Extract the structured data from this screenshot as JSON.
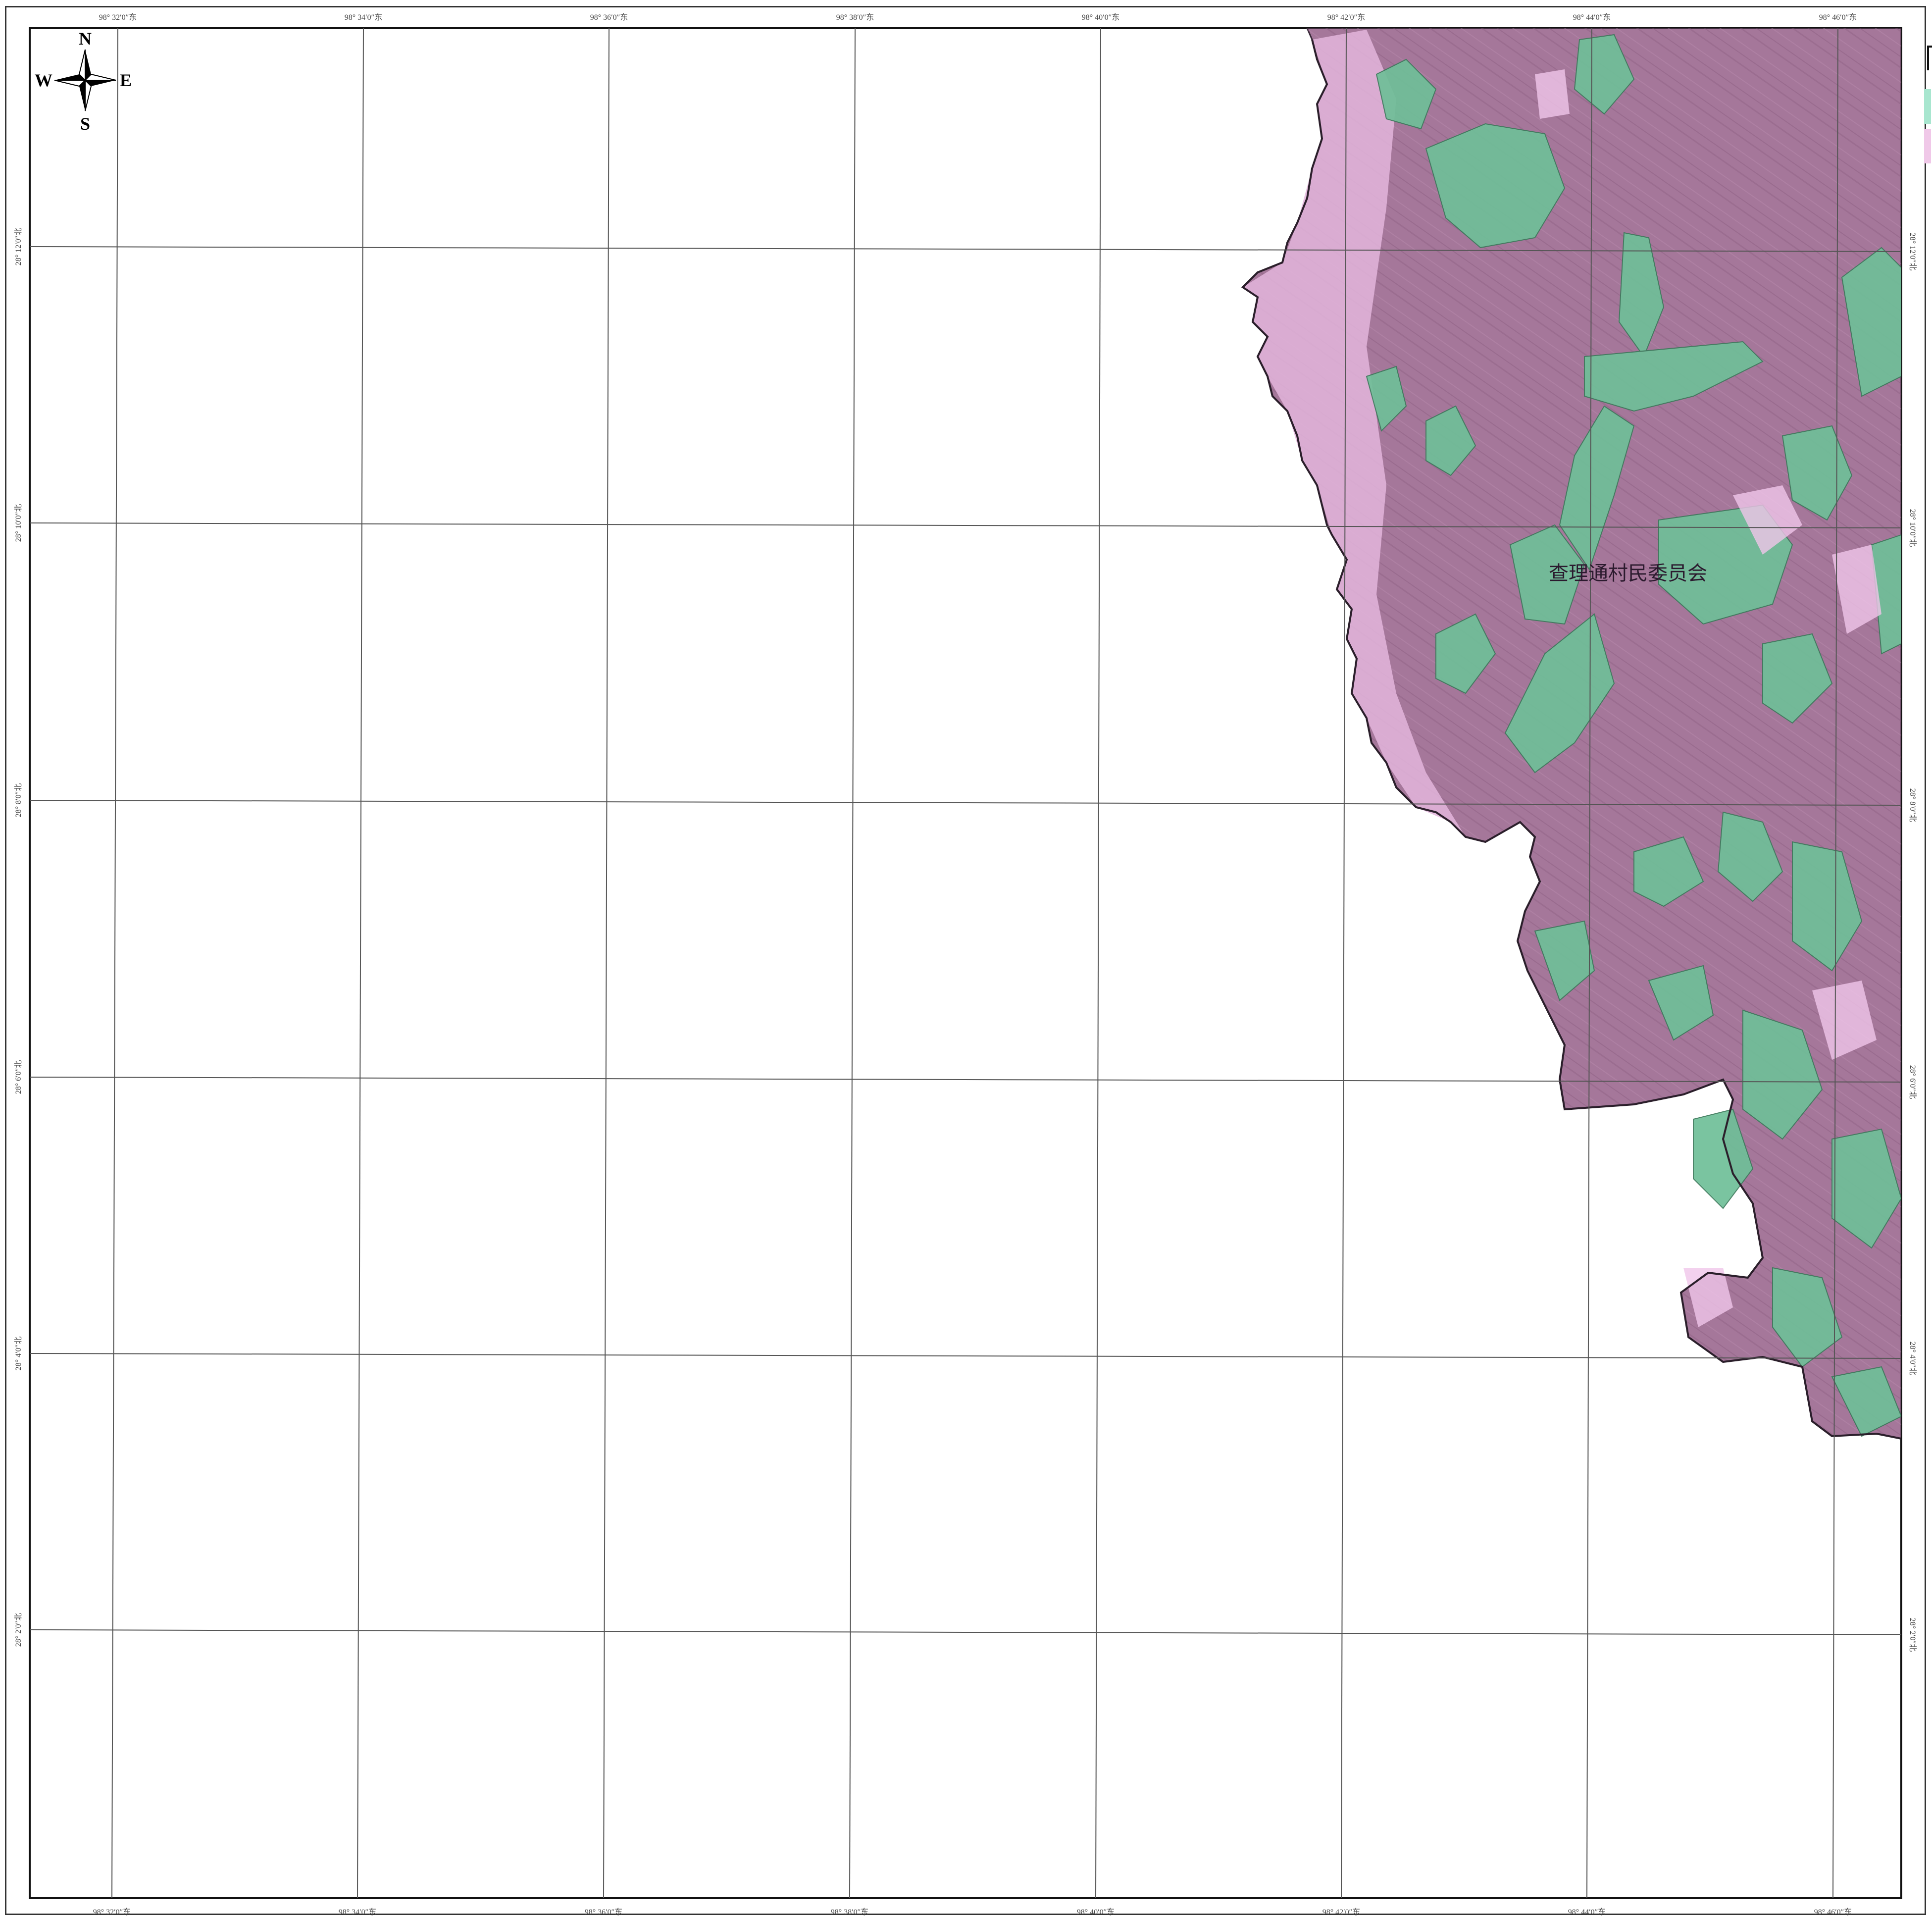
{
  "map": {
    "place_label": "查理通村民委员会",
    "compass": {
      "north": "N",
      "south": "S",
      "east": "E",
      "west": "W"
    },
    "top_ticks": [
      "98° 32′0″东",
      "98° 34′0″东",
      "98° 36′0″东",
      "98° 38′0″东",
      "98° 40′0″东",
      "98° 42′0″东",
      "98° 44′0″东",
      "98° 46′0″东"
    ],
    "bottom_ticks": [
      "98° 32′0″东",
      "98° 34′0″东",
      "98° 36′0″东",
      "98° 38′0″东",
      "98° 40′0″东",
      "98° 42′0″东",
      "98° 44′0″东",
      "98° 46′0″东"
    ],
    "left_ticks": [
      "28° 12′0″北",
      "28° 10′0″北",
      "28° 8′0″北",
      "28° 6′0″北",
      "28° 4′0″北",
      "28° 2′0″北"
    ],
    "right_ticks": [
      "28° 12′0″北",
      "28° 10′0″北",
      "28° 8′0″北",
      "28° 6′0″北",
      "28° 4′0″北",
      "28° 2′0″北"
    ],
    "colors": {
      "terrain_purple": "#a5779a",
      "terrain_pink": "#e3b5dc",
      "vegetation_green": "#6fbf98",
      "grid": "#555555"
    },
    "legend": [
      {
        "color": "#a8e6cf"
      },
      {
        "color": "#f0c8e8"
      }
    ]
  }
}
